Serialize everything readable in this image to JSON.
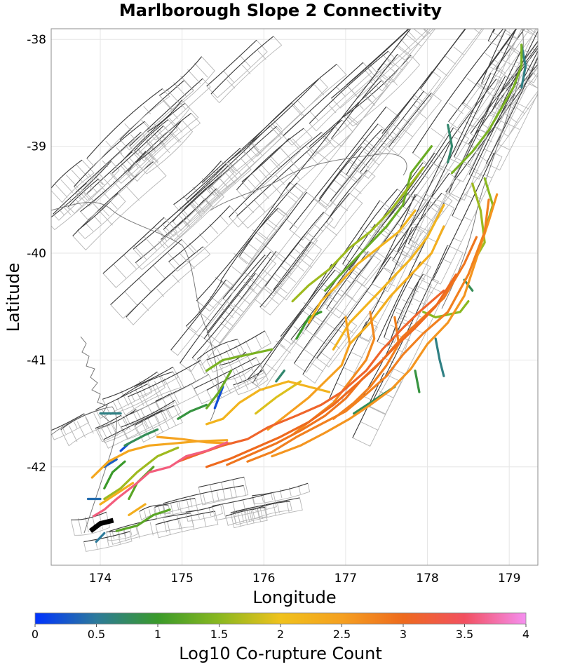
{
  "chart_data": {
    "type": "map",
    "title": "Marlborough Slope 2 Connectivity",
    "xlabel": "Longitude",
    "ylabel": "Latitude",
    "xlim": [
      173.4,
      179.35
    ],
    "ylim": [
      -42.92,
      -37.9
    ],
    "x_ticks": [
      174,
      175,
      176,
      177,
      178,
      179
    ],
    "y_ticks": [
      -38,
      -39,
      -40,
      -41,
      -42
    ],
    "colorbar": {
      "label": "Log10 Co-rupture Count",
      "range": [
        0,
        4
      ],
      "ticks": [
        0,
        0.5,
        1,
        1.5,
        2,
        2.5,
        3,
        3.5,
        4
      ],
      "tick_labels": [
        "0",
        "0.5",
        "1",
        "1.5",
        "2",
        "2.5",
        "3",
        "3.5",
        "4"
      ],
      "colors": [
        "#0033ff",
        "#2d7a9a",
        "#3a9a2a",
        "#8ab820",
        "#f0c21c",
        "#f5a020",
        "#ee6a1e",
        "#f25060",
        "#f58ff0"
      ]
    },
    "source_section": {
      "name": "Marlborough Slope 2",
      "color": "#000000",
      "points": [
        [
          173.88,
          -42.6
        ],
        [
          174.0,
          -42.53
        ],
        [
          174.16,
          -42.5
        ]
      ]
    },
    "ruptures": [
      {
        "v": 3.6,
        "points": [
          [
            173.92,
            -42.46
          ],
          [
            174.05,
            -42.4
          ],
          [
            174.2,
            -42.3
          ],
          [
            174.45,
            -42.15
          ],
          [
            174.6,
            -42.05
          ],
          [
            174.85,
            -42.0
          ],
          [
            175.05,
            -41.9
          ],
          [
            175.3,
            -41.85
          ],
          [
            175.55,
            -41.77
          ]
        ]
      },
      {
        "v": 3.1,
        "points": [
          [
            174.95,
            -41.95
          ],
          [
            175.2,
            -41.88
          ],
          [
            175.5,
            -41.8
          ],
          [
            175.8,
            -41.74
          ],
          [
            176.05,
            -41.63
          ],
          [
            176.4,
            -41.52
          ],
          [
            176.7,
            -41.42
          ],
          [
            176.95,
            -41.3
          ],
          [
            177.25,
            -41.1
          ],
          [
            177.45,
            -40.9
          ],
          [
            177.7,
            -40.7
          ],
          [
            177.9,
            -40.55
          ],
          [
            178.2,
            -40.35
          ]
        ]
      },
      {
        "v": 3.0,
        "points": [
          [
            175.3,
            -42.0
          ],
          [
            175.6,
            -41.92
          ],
          [
            175.9,
            -41.82
          ],
          [
            176.2,
            -41.72
          ],
          [
            176.55,
            -41.58
          ],
          [
            176.85,
            -41.42
          ],
          [
            177.1,
            -41.25
          ],
          [
            177.35,
            -41.08
          ],
          [
            177.6,
            -40.88
          ],
          [
            177.85,
            -40.7
          ],
          [
            178.1,
            -40.5
          ],
          [
            178.35,
            -40.2
          ]
        ]
      },
      {
        "v": 2.9,
        "points": [
          [
            175.55,
            -41.98
          ],
          [
            175.85,
            -41.88
          ],
          [
            176.15,
            -41.78
          ],
          [
            176.45,
            -41.66
          ],
          [
            176.75,
            -41.52
          ],
          [
            177.0,
            -41.36
          ],
          [
            177.2,
            -41.18
          ],
          [
            177.45,
            -41.0
          ],
          [
            177.7,
            -40.78
          ],
          [
            177.95,
            -40.6
          ],
          [
            178.2,
            -40.42
          ],
          [
            178.45,
            -40.1
          ],
          [
            178.6,
            -39.85
          ]
        ]
      },
      {
        "v": 2.8,
        "points": [
          [
            175.8,
            -41.95
          ],
          [
            176.1,
            -41.86
          ],
          [
            176.4,
            -41.72
          ],
          [
            176.7,
            -41.6
          ],
          [
            177.0,
            -41.48
          ],
          [
            177.25,
            -41.32
          ],
          [
            177.5,
            -41.15
          ],
          [
            177.7,
            -40.95
          ],
          [
            177.95,
            -40.75
          ],
          [
            178.25,
            -40.55
          ],
          [
            178.5,
            -40.2
          ],
          [
            178.7,
            -39.8
          ],
          [
            178.75,
            -39.5
          ]
        ]
      },
      {
        "v": 2.6,
        "points": [
          [
            176.1,
            -41.9
          ],
          [
            176.45,
            -41.8
          ],
          [
            176.75,
            -41.68
          ],
          [
            177.05,
            -41.55
          ],
          [
            177.3,
            -41.42
          ],
          [
            177.55,
            -41.28
          ],
          [
            177.8,
            -41.08
          ],
          [
            178.0,
            -40.85
          ],
          [
            178.25,
            -40.65
          ],
          [
            178.45,
            -40.4
          ],
          [
            178.6,
            -40.05
          ],
          [
            178.75,
            -39.7
          ],
          [
            178.85,
            -39.45
          ]
        ]
      },
      {
        "v": 2.45,
        "points": [
          [
            174.7,
            -41.72
          ],
          [
            175.0,
            -41.74
          ],
          [
            175.3,
            -41.77
          ],
          [
            175.6,
            -41.78
          ]
        ]
      },
      {
        "v": 2.4,
        "points": [
          [
            173.9,
            -42.1
          ],
          [
            174.1,
            -41.95
          ],
          [
            174.35,
            -41.85
          ],
          [
            174.6,
            -41.8
          ],
          [
            174.9,
            -41.78
          ],
          [
            175.2,
            -41.76
          ],
          [
            175.55,
            -41.75
          ]
        ]
      },
      {
        "v": 2.3,
        "points": [
          [
            174.0,
            -42.35
          ],
          [
            174.2,
            -42.25
          ],
          [
            174.4,
            -42.15
          ]
        ]
      },
      {
        "v": 2.3,
        "points": [
          [
            174.35,
            -42.45
          ],
          [
            174.55,
            -42.35
          ]
        ]
      },
      {
        "v": 2.2,
        "points": [
          [
            176.8,
            -41.3
          ],
          [
            176.55,
            -41.25
          ],
          [
            176.3,
            -41.2
          ],
          [
            175.95,
            -41.28
          ],
          [
            175.7,
            -41.4
          ],
          [
            175.5,
            -41.55
          ],
          [
            175.3,
            -41.6
          ]
        ]
      },
      {
        "v": 2.5,
        "points": [
          [
            177.0,
            -40.6
          ],
          [
            177.05,
            -40.85
          ],
          [
            176.95,
            -41.05
          ],
          [
            176.75,
            -41.2
          ],
          [
            176.55,
            -41.35
          ],
          [
            176.3,
            -41.5
          ],
          [
            176.05,
            -41.65
          ]
        ]
      },
      {
        "v": 2.7,
        "points": [
          [
            177.3,
            -40.55
          ],
          [
            177.35,
            -40.8
          ],
          [
            177.25,
            -41.0
          ],
          [
            177.05,
            -41.2
          ],
          [
            176.85,
            -41.4
          ],
          [
            176.6,
            -41.55
          ],
          [
            176.35,
            -41.7
          ]
        ]
      },
      {
        "v": 2.8,
        "points": [
          [
            177.6,
            -40.6
          ],
          [
            177.65,
            -40.85
          ],
          [
            177.5,
            -41.05
          ],
          [
            177.3,
            -41.25
          ],
          [
            177.1,
            -41.4
          ],
          [
            176.85,
            -41.55
          ]
        ]
      },
      {
        "v": 2.2,
        "points": [
          [
            176.55,
            -40.65
          ],
          [
            176.7,
            -40.45
          ],
          [
            176.9,
            -40.3
          ],
          [
            177.15,
            -40.1
          ],
          [
            177.4,
            -39.95
          ],
          [
            177.65,
            -39.8
          ],
          [
            177.85,
            -39.6
          ]
        ]
      },
      {
        "v": 2.2,
        "points": [
          [
            176.85,
            -40.9
          ],
          [
            177.05,
            -40.65
          ],
          [
            177.3,
            -40.45
          ],
          [
            177.55,
            -40.25
          ],
          [
            177.8,
            -40.05
          ],
          [
            178.0,
            -39.85
          ],
          [
            178.2,
            -39.55
          ]
        ]
      },
      {
        "v": 2.3,
        "points": [
          [
            177.05,
            -40.85
          ],
          [
            177.3,
            -40.65
          ],
          [
            177.55,
            -40.4
          ],
          [
            177.8,
            -40.2
          ],
          [
            178.05,
            -40.0
          ],
          [
            178.2,
            -39.75
          ]
        ]
      },
      {
        "v": 1.6,
        "points": [
          [
            176.35,
            -40.45
          ],
          [
            176.55,
            -40.3
          ],
          [
            176.8,
            -40.15
          ],
          [
            177.05,
            -39.95
          ],
          [
            177.3,
            -39.8
          ],
          [
            177.55,
            -39.6
          ],
          [
            177.75,
            -39.4
          ],
          [
            177.95,
            -39.2
          ]
        ]
      },
      {
        "v": 1.3,
        "points": [
          [
            176.75,
            -40.35
          ],
          [
            177.0,
            -40.15
          ],
          [
            177.25,
            -39.95
          ],
          [
            177.5,
            -39.75
          ],
          [
            177.7,
            -39.55
          ],
          [
            177.8,
            -39.25
          ],
          [
            178.05,
            -39.0
          ]
        ]
      },
      {
        "v": 1.4,
        "points": [
          [
            178.3,
            -39.25
          ],
          [
            178.55,
            -39.05
          ],
          [
            178.75,
            -38.85
          ],
          [
            178.9,
            -38.65
          ],
          [
            179.05,
            -38.45
          ],
          [
            179.15,
            -38.25
          ],
          [
            179.15,
            -38.05
          ]
        ]
      },
      {
        "v": 1.6,
        "points": [
          [
            178.55,
            -39.35
          ],
          [
            178.65,
            -39.6
          ],
          [
            178.7,
            -39.9
          ],
          [
            178.55,
            -40.1
          ]
        ]
      },
      {
        "v": 1.5,
        "points": [
          [
            178.7,
            -39.3
          ],
          [
            178.8,
            -39.55
          ],
          [
            178.7,
            -39.8
          ]
        ]
      },
      {
        "v": 1.5,
        "points": [
          [
            177.95,
            -40.55
          ],
          [
            178.1,
            -40.6
          ],
          [
            178.4,
            -40.55
          ],
          [
            178.5,
            -40.45
          ]
        ]
      },
      {
        "v": 0.6,
        "points": [
          [
            179.15,
            -38.05
          ],
          [
            179.2,
            -38.25
          ],
          [
            179.15,
            -38.45
          ]
        ]
      },
      {
        "v": 0.7,
        "points": [
          [
            178.25,
            -38.8
          ],
          [
            178.3,
            -39.0
          ],
          [
            178.25,
            -39.15
          ]
        ]
      },
      {
        "v": 0.8,
        "points": [
          [
            178.45,
            -40.25
          ],
          [
            178.55,
            -40.35
          ]
        ]
      },
      {
        "v": 0.6,
        "points": [
          [
            178.1,
            -40.8
          ],
          [
            178.15,
            -41.0
          ],
          [
            178.2,
            -41.15
          ]
        ]
      },
      {
        "v": 1.0,
        "points": [
          [
            176.7,
            -40.55
          ],
          [
            176.55,
            -40.6
          ],
          [
            176.4,
            -40.8
          ]
        ]
      },
      {
        "v": 1.3,
        "points": [
          [
            175.3,
            -41.45
          ],
          [
            175.45,
            -41.3
          ],
          [
            175.6,
            -41.1
          ]
        ]
      },
      {
        "v": 1.4,
        "points": [
          [
            175.3,
            -41.1
          ],
          [
            175.5,
            -41.0
          ],
          [
            175.8,
            -40.95
          ],
          [
            176.1,
            -40.9
          ]
        ]
      },
      {
        "v": 1.9,
        "points": [
          [
            175.9,
            -41.5
          ],
          [
            176.15,
            -41.35
          ],
          [
            176.45,
            -41.2
          ]
        ]
      },
      {
        "v": 1.6,
        "points": [
          [
            174.05,
            -42.3
          ],
          [
            174.25,
            -42.2
          ],
          [
            174.45,
            -42.05
          ],
          [
            174.7,
            -41.9
          ],
          [
            174.95,
            -41.82
          ]
        ]
      },
      {
        "v": 1.2,
        "points": [
          [
            174.2,
            -42.6
          ],
          [
            174.45,
            -42.55
          ],
          [
            174.65,
            -42.45
          ],
          [
            174.85,
            -42.4
          ]
        ]
      },
      {
        "v": 1.2,
        "points": [
          [
            174.35,
            -42.3
          ],
          [
            174.45,
            -42.15
          ],
          [
            174.65,
            -42.0
          ]
        ]
      },
      {
        "v": 1.0,
        "points": [
          [
            174.05,
            -42.2
          ],
          [
            174.15,
            -42.05
          ],
          [
            174.3,
            -41.95
          ]
        ]
      },
      {
        "v": 0.8,
        "points": [
          [
            174.3,
            -41.8
          ],
          [
            174.55,
            -41.7
          ],
          [
            174.7,
            -41.65
          ]
        ]
      },
      {
        "v": 0.9,
        "points": [
          [
            174.95,
            -41.55
          ],
          [
            175.1,
            -41.48
          ],
          [
            175.3,
            -41.42
          ]
        ]
      },
      {
        "v": 0.2,
        "points": [
          [
            174.25,
            -41.85
          ],
          [
            174.35,
            -41.78
          ]
        ]
      },
      {
        "v": 0.3,
        "points": [
          [
            174.05,
            -42.0
          ],
          [
            174.2,
            -41.93
          ]
        ]
      },
      {
        "v": 0.2,
        "points": [
          [
            175.4,
            -41.45
          ],
          [
            175.5,
            -41.25
          ]
        ]
      },
      {
        "v": 0.6,
        "points": [
          [
            174.0,
            -41.5
          ],
          [
            174.25,
            -41.5
          ]
        ]
      },
      {
        "v": 0.4,
        "points": [
          [
            173.85,
            -42.3
          ],
          [
            174.0,
            -42.3
          ]
        ]
      },
      {
        "v": 0.5,
        "points": [
          [
            173.95,
            -42.7
          ],
          [
            174.05,
            -42.62
          ]
        ]
      },
      {
        "v": 0.9,
        "points": [
          [
            177.85,
            -41.1
          ],
          [
            177.9,
            -41.3
          ]
        ]
      },
      {
        "v": 0.7,
        "points": [
          [
            176.15,
            -41.2
          ],
          [
            176.25,
            -41.1
          ]
        ]
      },
      {
        "v": 0.8,
        "points": [
          [
            177.1,
            -41.5
          ],
          [
            177.3,
            -41.4
          ],
          [
            177.6,
            -41.25
          ]
        ]
      }
    ]
  }
}
